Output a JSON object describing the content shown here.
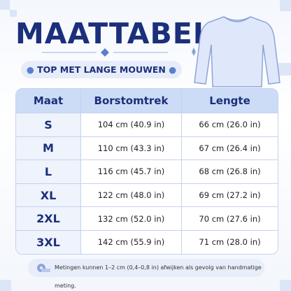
{
  "header": {
    "title": "MAATTABEL",
    "subtitle": "TOP MET LANGE MOUWEN"
  },
  "table": {
    "columns": [
      "Maat",
      "Borstomtrek",
      "Lengte"
    ],
    "rows": [
      [
        "S",
        "104 cm (40.9 in)",
        "66 cm (26.0 in)"
      ],
      [
        "M",
        "110 cm (43.3 in)",
        "67 cm (26.4 in)"
      ],
      [
        "L",
        "116 cm (45.7 in)",
        "68 cm (26.8 in)"
      ],
      [
        "XL",
        "122 cm (48.0 in)",
        "69 cm (27.2 in)"
      ],
      [
        "2XL",
        "132 cm (52.0 in)",
        "70 cm (27.6 in)"
      ],
      [
        "3XL",
        "142 cm (55.9 in)",
        "71 cm (28.0 in)"
      ]
    ]
  },
  "footnote": "Metingen kunnen 1–2 cm (0,4–0,8 in) afwijken als gevolg van handmatige meting."
}
